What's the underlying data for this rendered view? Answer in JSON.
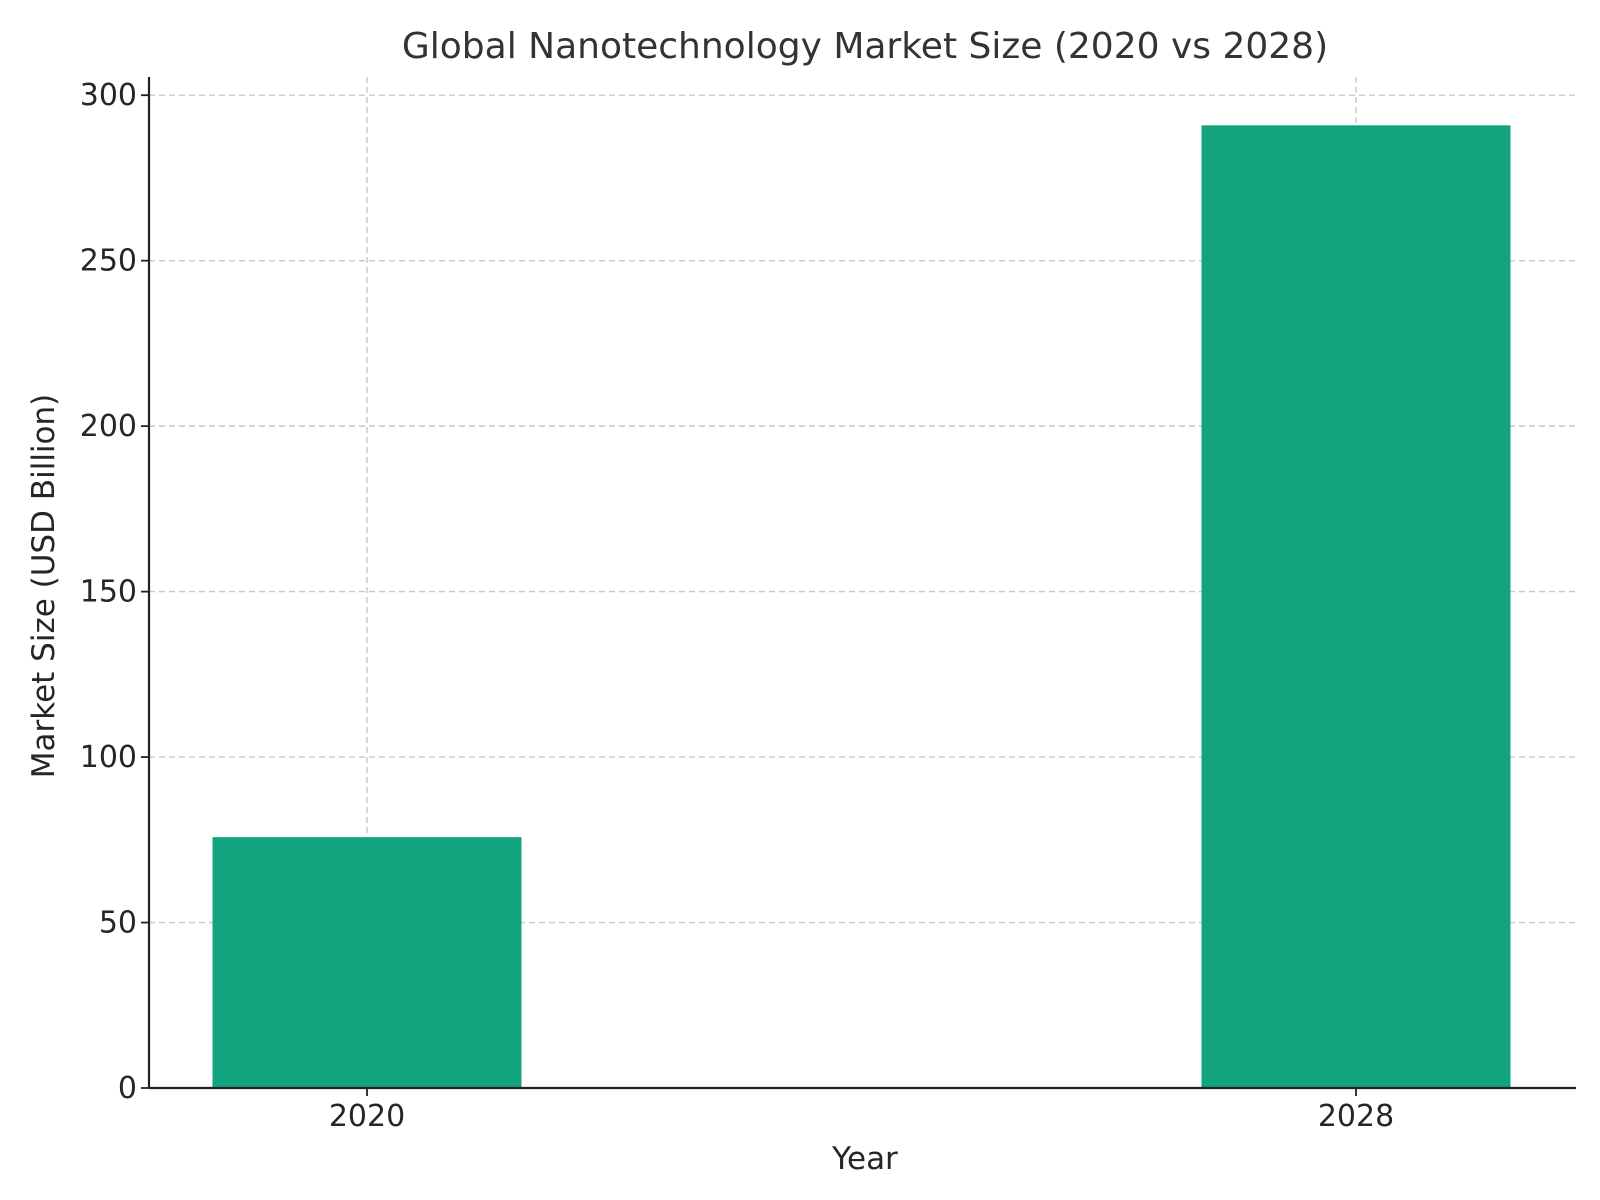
{
  "chart_data": {
    "type": "bar",
    "title": "Global Nanotechnology Market Size (2020 vs 2028)",
    "xlabel": "Year",
    "ylabel": "Market Size (USD Billion)",
    "categories": [
      "2020",
      "2028"
    ],
    "values": [
      75.8,
      290.9
    ],
    "ylim": [
      0,
      305.5
    ],
    "yticks": [
      0,
      50,
      100,
      150,
      200,
      250,
      300
    ],
    "grid": true,
    "bar_color": "#12a37f"
  }
}
